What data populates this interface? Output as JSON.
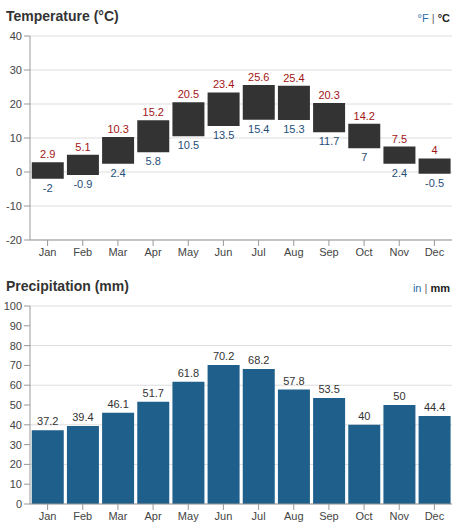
{
  "chart_data": [
    {
      "type": "range",
      "title": "Temperature (°C)",
      "annotations": [
        "°F | °C"
      ],
      "categories": [
        "Jan",
        "Feb",
        "Mar",
        "Apr",
        "May",
        "Jun",
        "Jul",
        "Aug",
        "Sep",
        "Oct",
        "Nov",
        "Dec"
      ],
      "values": [
        [
          -2,
          2.9
        ],
        [
          -0.9,
          5.1
        ],
        [
          2.4,
          10.3
        ],
        [
          5.8,
          15.2
        ],
        [
          10.5,
          20.5
        ],
        [
          13.5,
          23.4
        ],
        [
          15.4,
          25.6
        ],
        [
          15.3,
          25.4
        ],
        [
          11.7,
          20.3
        ],
        [
          7,
          14.2
        ],
        [
          2.4,
          7.5
        ],
        [
          -0.5,
          4
        ]
      ],
      "color": "#333333",
      "ylim": [
        -20,
        40
      ],
      "yticks": [
        -20,
        -10,
        0,
        10,
        20,
        30,
        40
      ],
      "grid": true,
      "data_labels": true
    },
    {
      "type": "bar",
      "title": "Precipitation (mm)",
      "annotations": [
        "in | mm"
      ],
      "categories": [
        "Jan",
        "Feb",
        "Mar",
        "Apr",
        "May",
        "Jun",
        "Jul",
        "Aug",
        "Sep",
        "Oct",
        "Nov",
        "Dec"
      ],
      "values": [
        37.2,
        39.4,
        46.1,
        51.7,
        61.8,
        70.2,
        68.2,
        57.8,
        53.5,
        40,
        50,
        44.4
      ],
      "color": "#1f5f8b",
      "ylim": [
        0,
        100
      ],
      "yticks": [
        0,
        10,
        20,
        30,
        40,
        50,
        60,
        70,
        80,
        90,
        100
      ],
      "grid": true,
      "data_labels": true
    }
  ]
}
